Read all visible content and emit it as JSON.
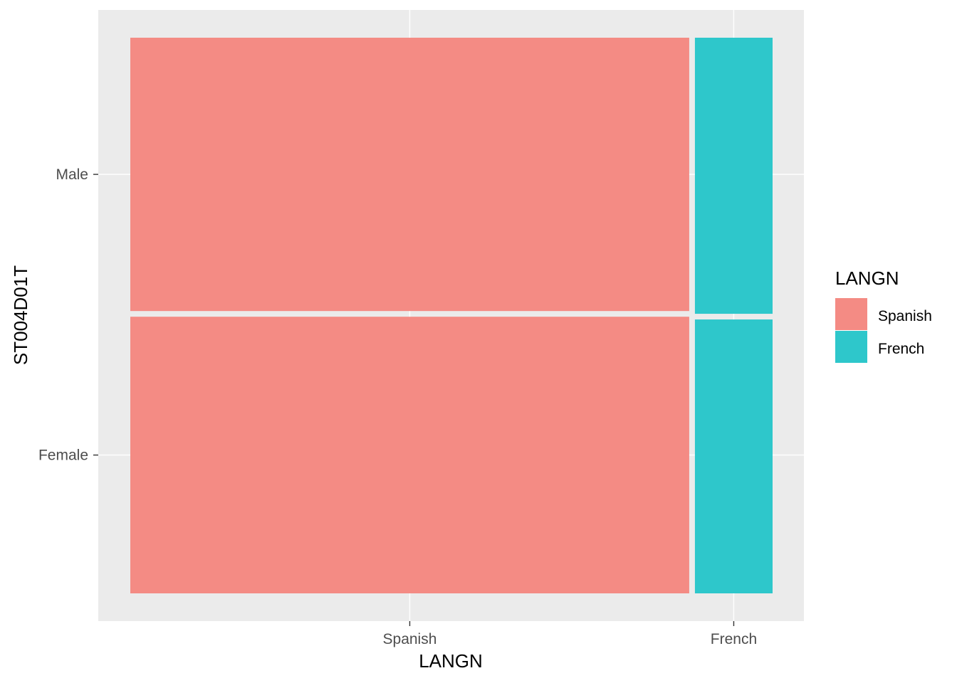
{
  "chart_data": {
    "type": "mosaic",
    "x_variable": "LANGN",
    "y_variable": "ST004D01T",
    "xlabel": "LANGN",
    "ylabel": "ST004D01T",
    "x_categories": [
      "Spanish",
      "French"
    ],
    "y_categories": [
      "Female",
      "Male"
    ],
    "x_proportions": [
      0.878,
      0.122
    ],
    "conditional_y_proportions": {
      "Spanish": {
        "Female": 0.503,
        "Male": 0.497
      },
      "French": {
        "Female": 0.498,
        "Male": 0.502
      }
    },
    "legend": {
      "title": "LANGN",
      "position": "right",
      "entries": [
        {
          "label": "Spanish",
          "color": "#f48b84"
        },
        {
          "label": "French",
          "color": "#2ec7cb"
        }
      ]
    },
    "colors": {
      "panel_background": "#ebebeb",
      "grid": "#ffffff",
      "Spanish": "#f48b84",
      "French": "#2ec7cb"
    },
    "grid": true
  }
}
